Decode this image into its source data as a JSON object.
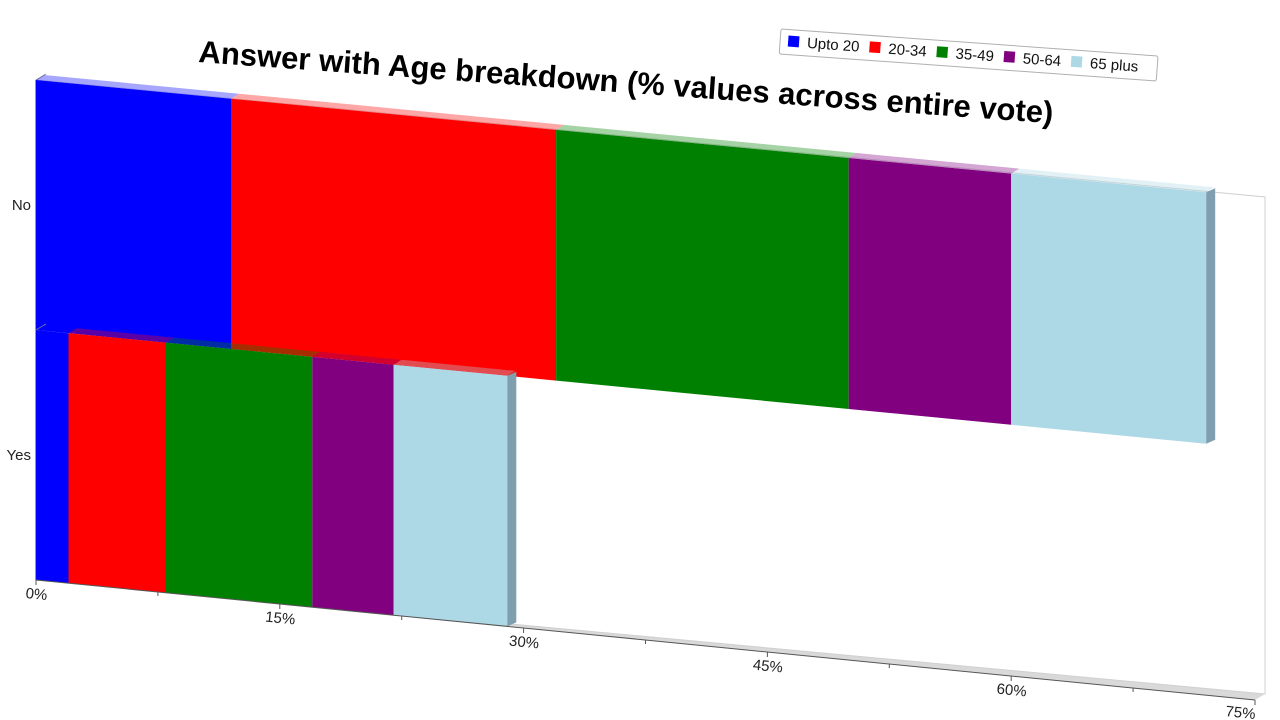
{
  "chart_data": {
    "type": "bar",
    "orientation": "horizontal",
    "stacked": true,
    "title": "Answer with Age breakdown (% values across entire vote)",
    "categories": [
      "No",
      "Yes"
    ],
    "x_ticks": [
      "0%",
      "15%",
      "30%",
      "45%",
      "60%",
      "75%"
    ],
    "xlim": [
      0,
      75
    ],
    "grid": false,
    "legend_position": "top-right",
    "series": [
      {
        "name": "Upto 20",
        "color": "#0000ff",
        "values": [
          12,
          2
        ]
      },
      {
        "name": "20-34",
        "color": "#ff0000",
        "values": [
          20,
          6
        ]
      },
      {
        "name": "35-49",
        "color": "#008000",
        "values": [
          18,
          9
        ]
      },
      {
        "name": "50-64",
        "color": "#800080",
        "values": [
          10,
          5
        ]
      },
      {
        "name": "65 plus",
        "color": "#add8e6",
        "values": [
          12,
          7
        ]
      }
    ]
  }
}
